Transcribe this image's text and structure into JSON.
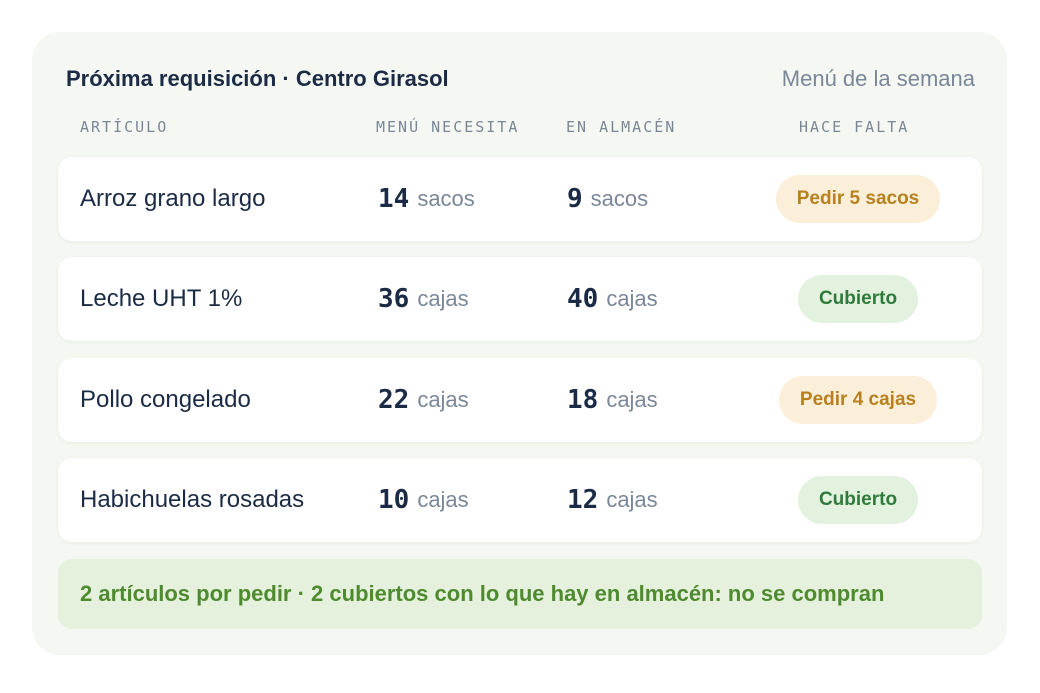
{
  "header": {
    "title": "Próxima requisición · Centro Girasol",
    "subtitle": "Menú de la semana"
  },
  "columns": {
    "item": "ARTÍCULO",
    "needed": "MENÚ NECESITA",
    "in_stock": "EN ALMACÉN",
    "missing": "HACE FALTA"
  },
  "rows": [
    {
      "name": "Arroz grano largo",
      "needed_qty": "14",
      "needed_unit": "sacos",
      "stock_qty": "9",
      "stock_unit": "sacos",
      "status": "Pedir 5 sacos",
      "status_type": "order"
    },
    {
      "name": "Leche UHT 1%",
      "needed_qty": "36",
      "needed_unit": "cajas",
      "stock_qty": "40",
      "stock_unit": "cajas",
      "status": "Cubierto",
      "status_type": "ok"
    },
    {
      "name": "Pollo congelado",
      "needed_qty": "22",
      "needed_unit": "cajas",
      "stock_qty": "18",
      "stock_unit": "cajas",
      "status": "Pedir 4 cajas",
      "status_type": "order"
    },
    {
      "name": "Habichuelas rosadas",
      "needed_qty": "10",
      "needed_unit": "cajas",
      "stock_qty": "12",
      "stock_unit": "cajas",
      "status": "Cubierto",
      "status_type": "ok"
    }
  ],
  "footer": {
    "summary": "2 artículos por pedir · 2 cubiertos con lo que hay en almacén: no se compran"
  },
  "colors": {
    "card_bg": "#f5f8f2",
    "text_dark": "#1c2b45",
    "text_muted": "#7a8798",
    "order_bg": "#fcefd9",
    "order_text": "#b8801f",
    "ok_bg": "#e3f1df",
    "ok_text": "#2f7b3b",
    "footer_bg": "#e5f1dd",
    "footer_text": "#4e8a2e"
  }
}
